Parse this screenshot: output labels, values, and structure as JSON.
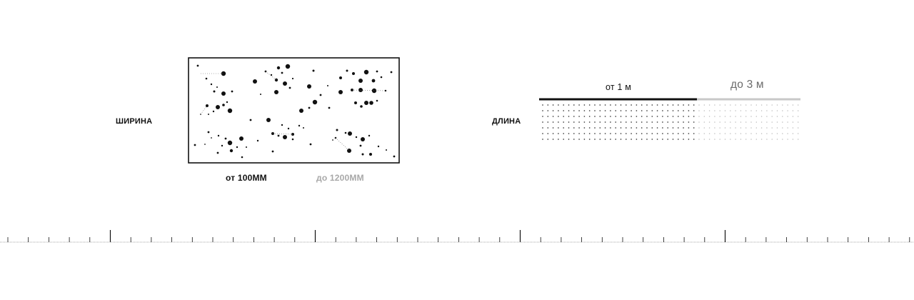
{
  "width_block": {
    "label": "ШИРИНА",
    "min": "от 100ММ",
    "max": "до 1200ММ"
  },
  "length_block": {
    "label": "ДЛИНА",
    "min": "от 1 м",
    "max": "до 3 м"
  },
  "colors": {
    "ink": "#111111",
    "muted": "#a8a8a8",
    "muted_dark": "#6b6b6b",
    "bar_light": "#c8c8c8"
  }
}
